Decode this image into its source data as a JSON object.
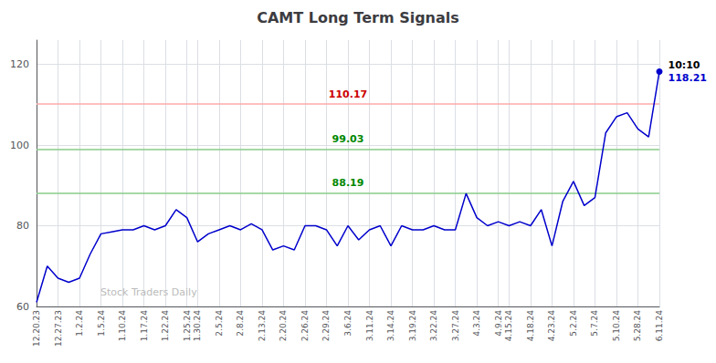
{
  "chart_data": {
    "type": "line",
    "title": "CAMT Long Term Signals",
    "categories": [
      "12.20.23",
      null,
      "12.27.23",
      null,
      "1.2.24",
      null,
      "1.5.24",
      null,
      "1.10.24",
      null,
      "1.17.24",
      null,
      "1.22.24",
      null,
      "1.25.24",
      "1.30.24",
      null,
      "2.5.24",
      null,
      "2.8.24",
      null,
      "2.13.24",
      null,
      "2.20.24",
      null,
      "2.26.24",
      null,
      "2.29.24",
      null,
      "3.6.24",
      null,
      "3.11.24",
      null,
      "3.14.24",
      null,
      "3.19.24",
      null,
      "3.22.24",
      null,
      "3.27.24",
      null,
      "4.3.24",
      null,
      "4.9.24",
      "4.15.24",
      null,
      "4.18.24",
      null,
      "4.23.24",
      null,
      "5.2.24",
      null,
      "5.7.24",
      null,
      "5.10.24",
      null,
      "5.28.24",
      null,
      "6.11.24"
    ],
    "values": [
      61.0,
      70.0,
      67.0,
      66.0,
      67.0,
      73.0,
      78.0,
      78.5,
      79.0,
      79.0,
      80.0,
      79.0,
      80.0,
      84.0,
      82.0,
      76.0,
      78.0,
      79.0,
      80.0,
      79.0,
      80.5,
      79.0,
      74.0,
      75.0,
      74.0,
      80.0,
      80.0,
      79.0,
      75.0,
      80.0,
      76.5,
      79.0,
      80.0,
      75.0,
      80.0,
      79.0,
      79.0,
      80.0,
      79.0,
      79.0,
      88.0,
      82.0,
      80.0,
      81.0,
      80.0,
      81.0,
      80.0,
      84.0,
      75.0,
      86.0,
      91.0,
      85.0,
      87.0,
      103.0,
      107.0,
      108.0,
      104.0,
      102.0,
      118.21
    ],
    "color": "#0000cc",
    "ylim": [
      60,
      126
    ],
    "yticks": [
      60,
      80,
      100,
      120
    ],
    "grid": true,
    "hlines": [
      {
        "y": 110.17,
        "color": "#ffaaaa",
        "label": "110.17",
        "label_color": "#cc0000"
      },
      {
        "y": 99.03,
        "color": "#88cc88",
        "label": "99.03",
        "label_color": "#008800"
      },
      {
        "y": 88.19,
        "color": "#88cc88",
        "label": "88.19",
        "label_color": "#008800"
      }
    ],
    "annotations": [
      {
        "text": "10:10",
        "color": "#000000",
        "anchor": "last_point"
      },
      {
        "text": "118.21",
        "color": "#0000cc",
        "anchor": "last_point"
      },
      {
        "text": "Stock Traders Daily",
        "color": "#bbbbbb",
        "anchor": "watermark"
      }
    ]
  }
}
